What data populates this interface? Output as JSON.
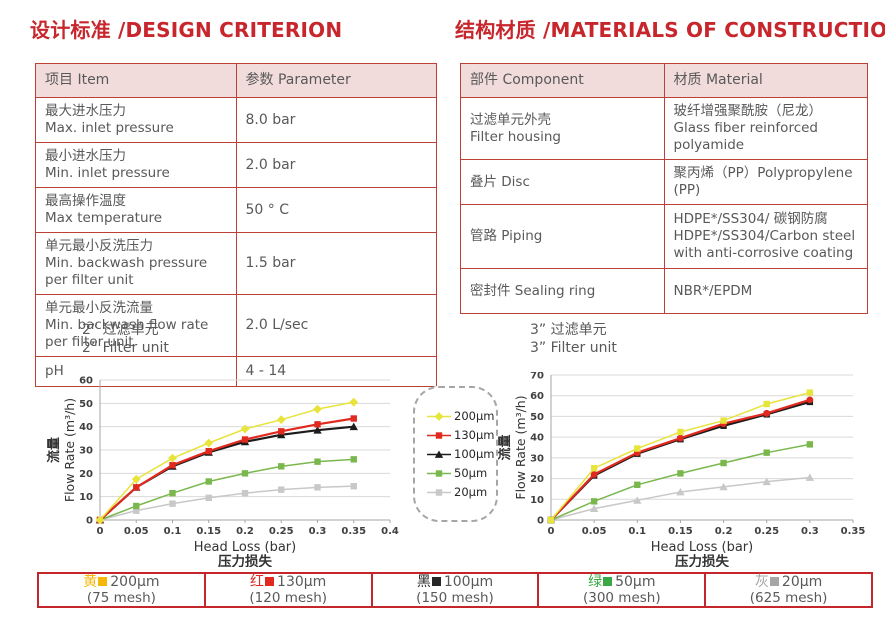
{
  "design_section": {
    "title": "设计标准 /DESIGN CRITERION",
    "table": {
      "headers": [
        "项目 Item",
        "参数 Parameter"
      ],
      "rows": [
        {
          "item": [
            "最大进水压力",
            "Max. inlet pressure"
          ],
          "value": "8.0 bar"
        },
        {
          "item": [
            "最小进水压力",
            "Min. inlet pressure"
          ],
          "value": "2.0 bar"
        },
        {
          "item": [
            "最高操作温度",
            "Max temperature"
          ],
          "value": "50 ° C"
        },
        {
          "item": [
            "单元最小反洗压力",
            "Min. backwash pressure per filter unit"
          ],
          "value": "1.5 bar"
        },
        {
          "item": [
            "单元最小反洗流量",
            "Min. backwash flow rate per filter unit"
          ],
          "value": "2.0 L/sec"
        },
        {
          "item": [
            "pH"
          ],
          "value": "4 - 14"
        }
      ]
    }
  },
  "materials_section": {
    "title": "结构材质 /MATERIALS OF CONSTRUCTION",
    "table": {
      "headers": [
        "部件 Component",
        "材质 Material"
      ],
      "rows": [
        {
          "component": [
            "过滤单元外壳",
            "Filter housing"
          ],
          "material": [
            "玻纤增强聚酰胺（尼龙）",
            "Glass fiber reinforced polyamide"
          ]
        },
        {
          "component": [
            "叠片 Disc"
          ],
          "material": [
            "聚丙烯（PP）Polypropylene (PP)"
          ]
        },
        {
          "component": [
            "管路 Piping"
          ],
          "material": [
            "HDPE*/SS304/ 碳钢防腐",
            "HDPE*/SS304/Carbon steel with anti-corrosive coating"
          ]
        },
        {
          "component": [
            "密封件 Sealing ring"
          ],
          "material": [
            "NBR*/EPDM"
          ]
        }
      ]
    }
  },
  "chart_data": [
    {
      "type": "line",
      "title_zh": "2” 过滤单元",
      "title_en": "2” Filter unit",
      "xlabel": "Head Loss (bar)",
      "xlabel_zh": "压力损失",
      "ylabel_zh": "流量",
      "ylabel": "Flow Rate (m³/h)",
      "xlim": [
        0,
        0.4
      ],
      "ylim": [
        0,
        60
      ],
      "xticks": [
        "0",
        "0.05",
        "0.1",
        "0.15",
        "0.2",
        "0.25",
        "0.3",
        "0.35",
        "0.4"
      ],
      "yticks": [
        0,
        10,
        20,
        30,
        40,
        50,
        60
      ],
      "grid": "horizontal",
      "x": [
        0,
        0.05,
        0.1,
        0.15,
        0.2,
        0.25,
        0.3,
        0.35
      ],
      "series": [
        {
          "name": "200μm",
          "color": "#e7e43c",
          "marker": "diamond",
          "values": [
            0,
            17.5,
            26.5,
            33,
            39,
            43,
            47.5,
            50.5
          ]
        },
        {
          "name": "130μm",
          "color": "#e0291f",
          "marker": "square",
          "values": [
            0,
            14,
            23.5,
            29.5,
            34.5,
            38,
            41,
            43.5
          ]
        },
        {
          "name": "100μm",
          "color": "#1c1c1c",
          "marker": "triangle",
          "values": [
            0,
            14,
            23,
            29,
            33.5,
            36.5,
            38.5,
            40
          ]
        },
        {
          "name": "50μm",
          "color": "#7ab84e",
          "marker": "square",
          "values": [
            0,
            6,
            11.5,
            16.5,
            20,
            23,
            25,
            26
          ]
        },
        {
          "name": "20μm",
          "color": "#c8c8c8",
          "marker": "square",
          "values": [
            0,
            4,
            7,
            9.5,
            11.5,
            13,
            14,
            14.5
          ]
        }
      ]
    },
    {
      "type": "line",
      "title_zh": "3” 过滤单元",
      "title_en": "3” Filter unit",
      "xlabel": "Head Loss (bar)",
      "xlabel_zh": "压力损失",
      "ylabel_zh": "流量",
      "ylabel": "Flow Rate (m³/h)",
      "xlim": [
        0,
        0.35
      ],
      "ylim": [
        0,
        70
      ],
      "xticks": [
        "0",
        "0.05",
        "0.1",
        "0.15",
        "0.2",
        "0.25",
        "0.3",
        "0.35"
      ],
      "yticks": [
        0,
        10,
        20,
        30,
        40,
        50,
        60,
        70
      ],
      "grid": "horizontal",
      "x": [
        0,
        0.05,
        0.1,
        0.15,
        0.2,
        0.25,
        0.3
      ],
      "series": [
        {
          "name": "200μm",
          "color": "#e7e43c",
          "marker": "square",
          "values": [
            0,
            25,
            34.5,
            42.5,
            48,
            56,
            61.5
          ]
        },
        {
          "name": "130μm",
          "color": "#e0291f",
          "marker": "circle",
          "values": [
            0,
            22,
            32.5,
            39.5,
            46.5,
            51.5,
            58
          ]
        },
        {
          "name": "100μm",
          "color": "#1c1c1c",
          "marker": "square",
          "values": [
            0,
            21.5,
            32,
            39,
            45.5,
            51,
            57
          ]
        },
        {
          "name": "50μm",
          "color": "#7ab84e",
          "marker": "square",
          "values": [
            0,
            9,
            17,
            22.5,
            27.5,
            32.5,
            36.5
          ]
        },
        {
          "name": "20μm",
          "color": "#c8c8c8",
          "marker": "triangle",
          "values": [
            0,
            5.5,
            9.5,
            13.5,
            16,
            18.5,
            20.5
          ]
        }
      ]
    }
  ],
  "bottom_legend": {
    "items": [
      {
        "color_name": "黄",
        "color": "#f6b709",
        "size": "200μm",
        "mesh": "(75 mesh)"
      },
      {
        "color_name": "红",
        "color": "#e0291f",
        "size": "130μm",
        "mesh": "(120 mesh)"
      },
      {
        "color_name": "黑",
        "color": "#262626",
        "size": "100μm",
        "mesh": "(150 mesh)"
      },
      {
        "color_name": "绿",
        "color": "#3aa845",
        "size": "50μm",
        "mesh": "(300 mesh)"
      },
      {
        "color_name": "灰",
        "color": "#a6a6a6",
        "size": "20μm",
        "mesh": "(625 mesh)"
      }
    ]
  }
}
